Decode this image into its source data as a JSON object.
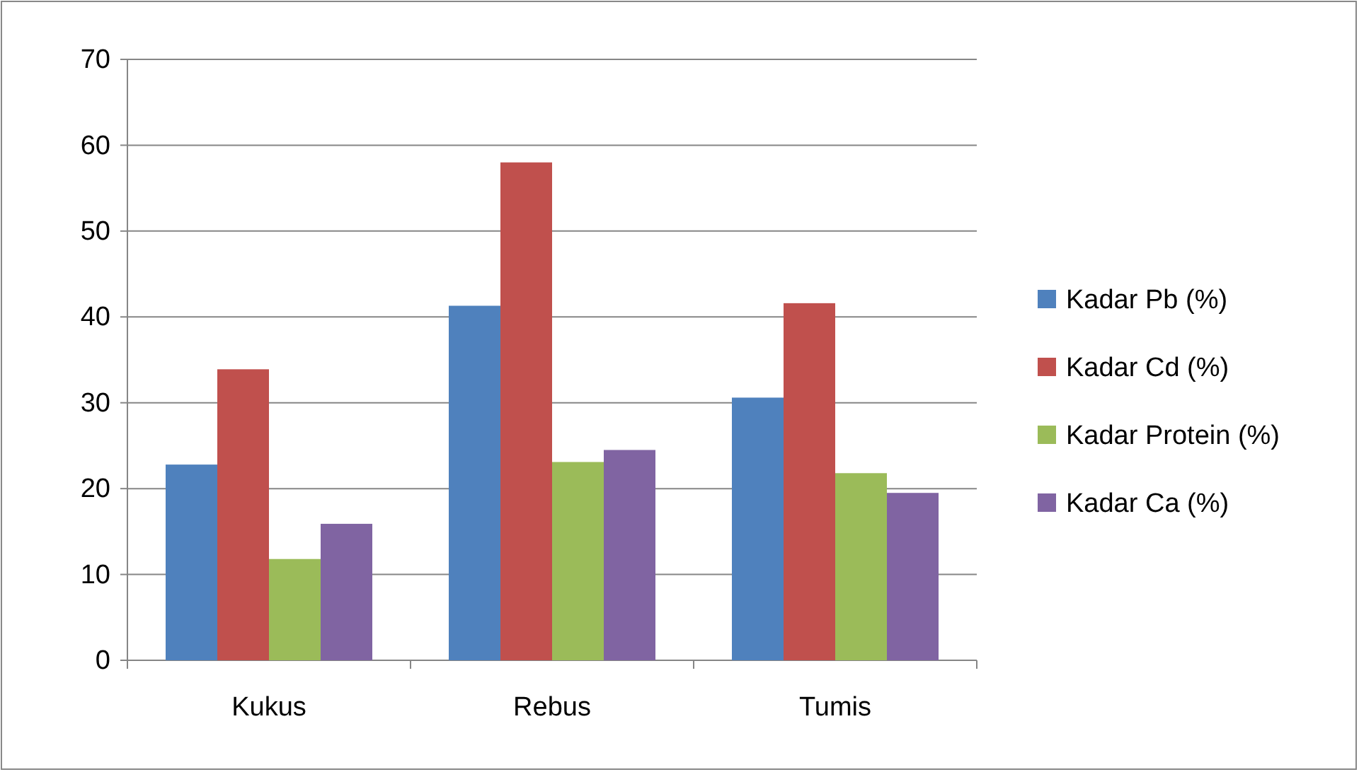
{
  "chart_data": {
    "type": "bar",
    "categories": [
      "Kukus",
      "Rebus",
      "Tumis"
    ],
    "series": [
      {
        "name": "Kadar Pb (%)",
        "color": "#4f81bd",
        "values": [
          22.8,
          41.3,
          30.6
        ]
      },
      {
        "name": "Kadar Cd (%)",
        "color": "#c0504d",
        "values": [
          33.9,
          58.0,
          41.6
        ]
      },
      {
        "name": "Kadar Protein (%)",
        "color": "#9bbb59",
        "values": [
          11.8,
          23.1,
          21.8
        ]
      },
      {
        "name": "Kadar Ca (%)",
        "color": "#8064a2",
        "values": [
          15.9,
          24.5,
          19.5
        ]
      }
    ],
    "ylim": [
      0,
      70
    ],
    "yticks": [
      0,
      10,
      20,
      30,
      40,
      50,
      60,
      70
    ],
    "grid": "y",
    "legend": "right"
  }
}
